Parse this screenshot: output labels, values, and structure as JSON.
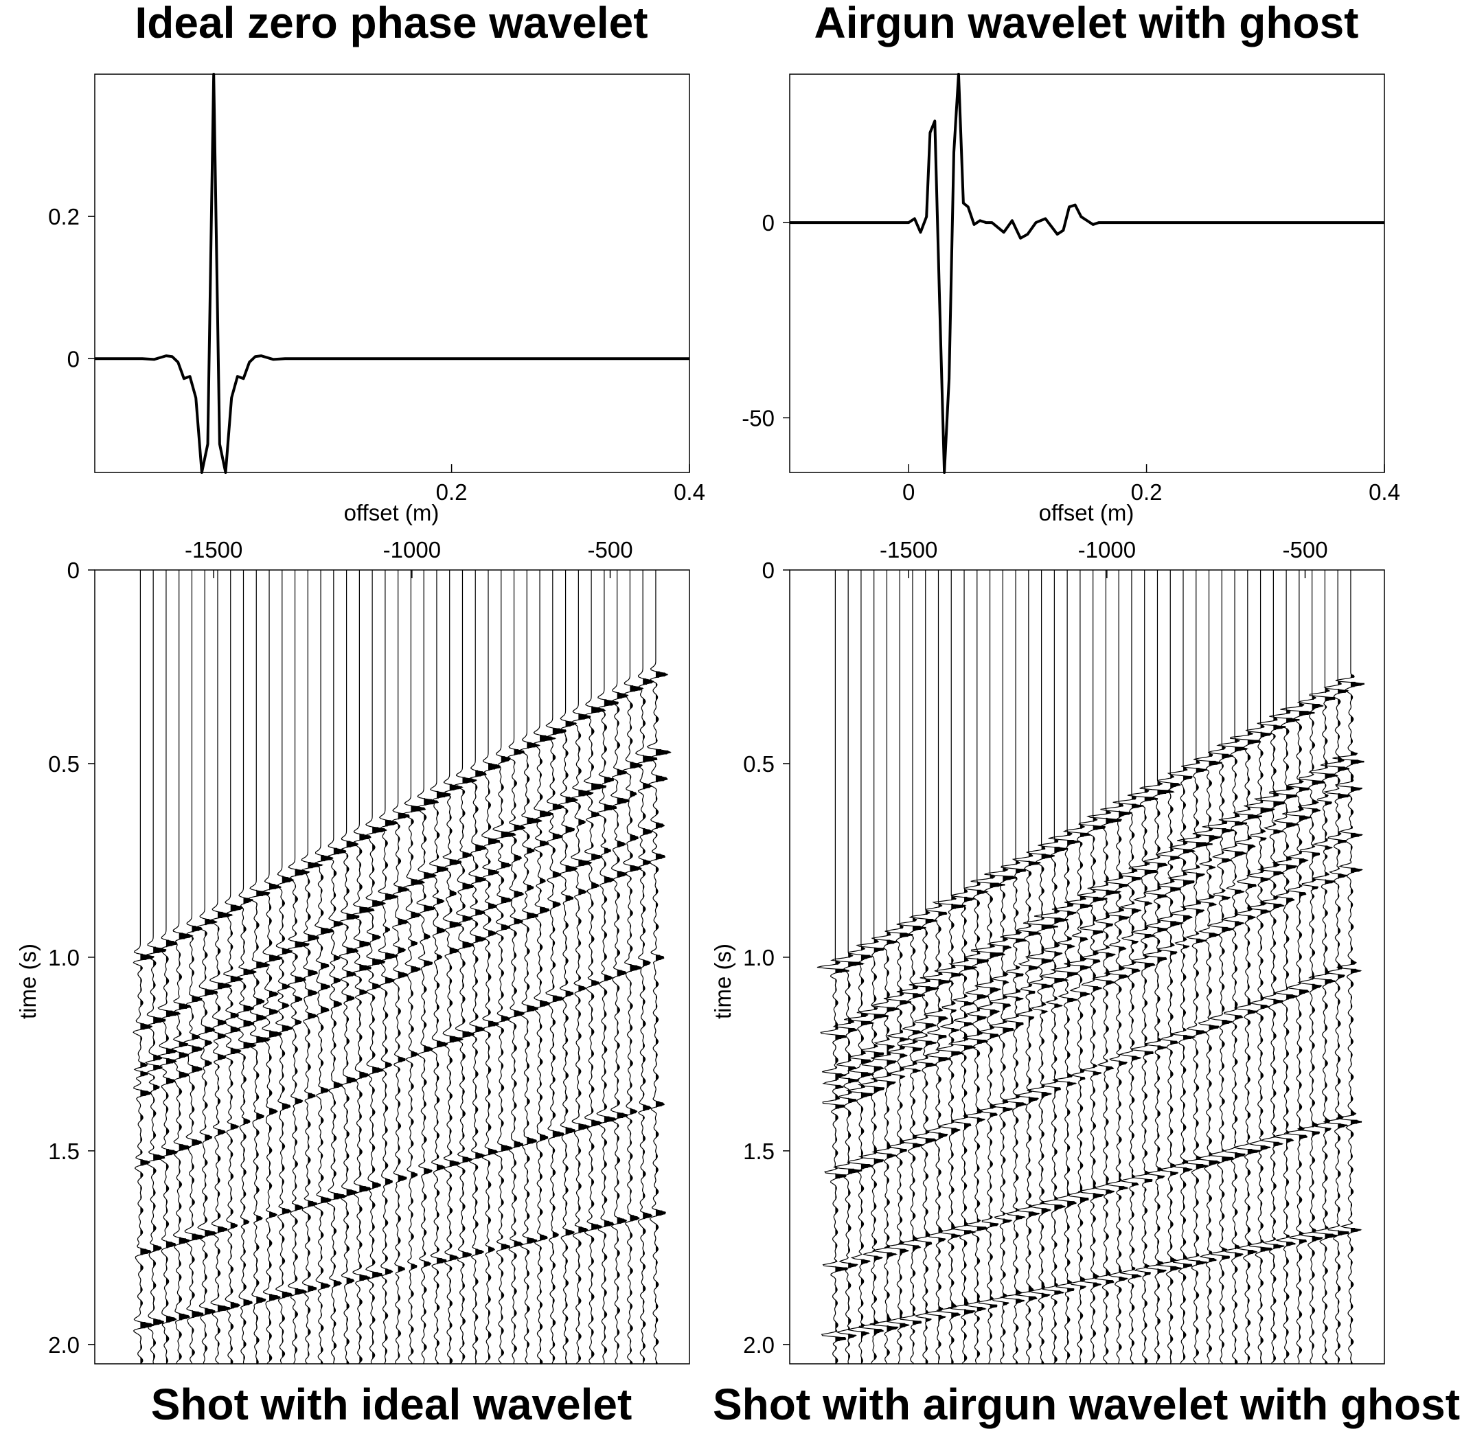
{
  "chart_data": [
    {
      "type": "line",
      "title": "Ideal zero phase wavelet",
      "xlabel": "offset (m)",
      "ylabel": "",
      "xlim": [
        -0.1,
        0.4
      ],
      "ylim": [
        -0.16,
        0.4
      ],
      "xticks": [
        0.2,
        0.4
      ],
      "yticks": [
        0,
        0.2
      ],
      "grid": false,
      "series": [
        {
          "x": [
            -0.1,
            -0.06,
            -0.05,
            -0.04,
            -0.035,
            -0.03,
            -0.025,
            -0.02,
            -0.015,
            -0.01,
            -0.005,
            0,
            0.005,
            0.01,
            0.015,
            0.02,
            0.025,
            0.03,
            0.035,
            0.04,
            0.05,
            0.06,
            0.08,
            0.1,
            0.2,
            0.3,
            0.4
          ],
          "y": [
            0,
            0,
            -0.001,
            0.004,
            0.003,
            -0.005,
            -0.028,
            -0.025,
            -0.055,
            -0.16,
            -0.12,
            0.4,
            -0.12,
            -0.16,
            -0.055,
            -0.025,
            -0.028,
            -0.005,
            0.003,
            0.004,
            -0.001,
            0,
            0,
            0,
            0,
            0,
            0
          ]
        }
      ]
    },
    {
      "type": "line",
      "title": "Airgun wavelet with ghost",
      "xlabel": "offset (m)",
      "ylabel": "",
      "xlim": [
        -0.1,
        0.4
      ],
      "ylim": [
        -64,
        38
      ],
      "xticks": [
        0,
        0.2,
        0.4
      ],
      "yticks": [
        -50,
        0
      ],
      "grid": false,
      "series": [
        {
          "x": [
            -0.1,
            0,
            0.005,
            0.01,
            0.015,
            0.018,
            0.022,
            0.026,
            0.03,
            0.034,
            0.038,
            0.042,
            0.046,
            0.05,
            0.055,
            0.06,
            0.065,
            0.07,
            0.08,
            0.087,
            0.094,
            0.1,
            0.107,
            0.115,
            0.125,
            0.13,
            0.135,
            0.14,
            0.145,
            0.15,
            0.155,
            0.16,
            0.17,
            0.18,
            0.2,
            0.25,
            0.3,
            0.4
          ],
          "y": [
            0,
            0,
            1,
            -2.5,
            1.5,
            23,
            26,
            -20,
            -64,
            -40,
            18,
            38,
            5,
            4,
            -0.5,
            0.5,
            0,
            0,
            -2.5,
            0.5,
            -4,
            -3,
            0,
            1,
            -3,
            -2,
            4,
            4.5,
            1.5,
            0.5,
            -0.5,
            0,
            0,
            0,
            0,
            0,
            0,
            0
          ]
        }
      ]
    },
    {
      "type": "wiggle",
      "title": "Shot with ideal wavelet",
      "xlabel": "",
      "ylabel": "time (s)",
      "xaxis": "top",
      "xlim": [
        -1800,
        -300
      ],
      "ylim": [
        2.05,
        0
      ],
      "xticks": [
        -1500,
        -1000,
        -500
      ],
      "yticks": [
        0,
        0.5,
        1.0,
        1.5,
        2.0
      ],
      "grid": false,
      "trace_offset_range": [
        -1685,
        -385
      ],
      "trace_count": 41,
      "events": [
        {
          "t0": 0.27,
          "t_far": 1.0
        },
        {
          "t0": 0.47,
          "t_far": 1.18
        },
        {
          "t0": 0.54,
          "t_far": 1.28
        },
        {
          "t0": 0.66,
          "t_far": 1.3
        },
        {
          "t0": 0.74,
          "t_far": 1.35
        },
        {
          "t0": 1.0,
          "t_far": 1.53
        },
        {
          "t0": 1.38,
          "t_far": 1.76
        },
        {
          "t0": 1.66,
          "t_far": 1.95
        }
      ]
    },
    {
      "type": "wiggle",
      "title": "Shot with airgun wavelet with ghost",
      "xlabel": "",
      "ylabel": "time (s)",
      "xaxis": "top",
      "xlim": [
        -1800,
        -300
      ],
      "ylim": [
        2.05,
        0
      ],
      "xticks": [
        -1500,
        -1000,
        -500
      ],
      "yticks": [
        0,
        0.5,
        1.0,
        1.5,
        2.0
      ],
      "grid": false,
      "trace_offset_range": [
        -1685,
        -385
      ],
      "trace_count": 41,
      "events": [
        {
          "t0": 0.29,
          "t_far": 1.03
        },
        {
          "t0": 0.49,
          "t_far": 1.2
        },
        {
          "t0": 0.56,
          "t_far": 1.3
        },
        {
          "t0": 0.68,
          "t_far": 1.33
        },
        {
          "t0": 0.77,
          "t_far": 1.38
        },
        {
          "t0": 1.03,
          "t_far": 1.56
        },
        {
          "t0": 1.42,
          "t_far": 1.8
        },
        {
          "t0": 1.7,
          "t_far": 1.98
        }
      ]
    }
  ]
}
